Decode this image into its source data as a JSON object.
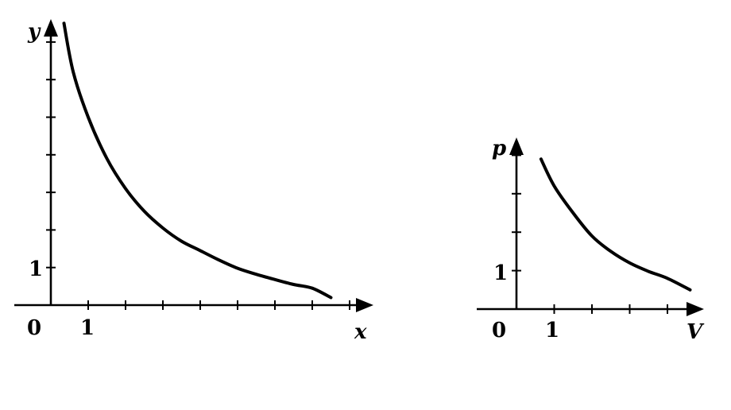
{
  "chart_data": [
    {
      "type": "line",
      "title": "",
      "xlabel": "x",
      "ylabel": "y",
      "origin_label": "0",
      "x_tick_label": "1",
      "y_tick_label": "1",
      "x_ticks": 8,
      "y_ticks": 7,
      "xlim": [
        0,
        8.8
      ],
      "ylim": [
        0,
        7.4
      ],
      "grid": false,
      "legend": "none",
      "series": [
        {
          "x": [
            0.35,
            0.6,
            1,
            1.5,
            2,
            2.5,
            3,
            3.5,
            4,
            4.5,
            5,
            5.5,
            6,
            6.5,
            7,
            7.5
          ],
          "y": [
            7.5,
            6.2,
            5.0,
            3.9,
            3.1,
            2.5,
            2.05,
            1.7,
            1.45,
            1.2,
            0.98,
            0.82,
            0.68,
            0.55,
            0.45,
            0.2
          ]
        }
      ]
    },
    {
      "type": "line",
      "title": "",
      "xlabel": "V",
      "ylabel": "p",
      "origin_label": "0",
      "x_tick_label": "1",
      "y_tick_label": "1",
      "x_ticks": 4,
      "y_ticks": 4,
      "xlim": [
        0,
        4.9
      ],
      "ylim": [
        0,
        4.2
      ],
      "grid": false,
      "legend": "none",
      "series": [
        {
          "x": [
            0.65,
            1,
            1.5,
            2,
            2.5,
            3,
            3.5,
            4,
            4.6
          ],
          "y": [
            3.9,
            3.2,
            2.5,
            1.9,
            1.5,
            1.2,
            0.98,
            0.8,
            0.5
          ]
        }
      ]
    }
  ]
}
